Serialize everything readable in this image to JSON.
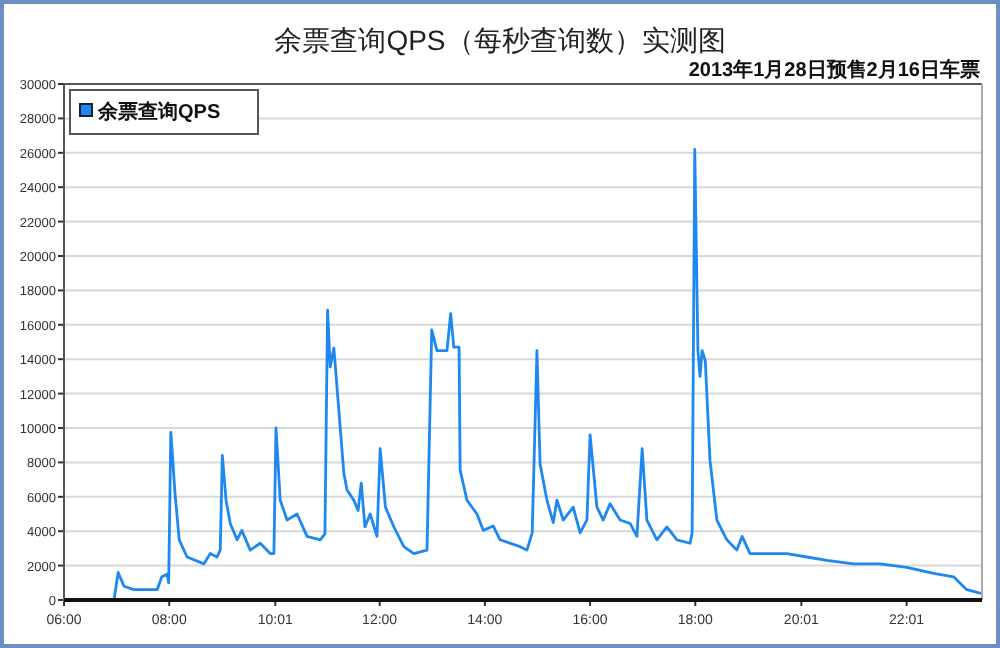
{
  "chart_data": {
    "type": "line",
    "title": "余票查询QPS（每秒查询数）实测图",
    "subtitle": "2013年1月28日预售2月16日车票",
    "x": [
      6.0,
      6.95,
      7.03,
      7.14,
      7.33,
      7.77,
      7.86,
      7.96,
      7.99,
      8.03,
      8.06,
      8.11,
      8.19,
      8.34,
      8.66,
      8.78,
      8.91,
      8.97,
      9.01,
      9.08,
      9.16,
      9.29,
      9.38,
      9.54,
      9.73,
      9.92,
      9.99,
      10.03,
      10.11,
      10.24,
      10.43,
      10.62,
      10.87,
      10.96,
      11.01,
      11.06,
      11.13,
      11.25,
      11.32,
      11.38,
      11.51,
      11.59,
      11.65,
      11.72,
      11.82,
      11.95,
      12.01,
      12.11,
      12.27,
      12.46,
      12.65,
      12.9,
      12.99,
      13.09,
      13.28,
      13.35,
      13.41,
      13.51,
      13.53,
      13.66,
      13.85,
      13.97,
      14.16,
      14.29,
      14.67,
      14.8,
      14.9,
      14.99,
      15.05,
      15.18,
      15.3,
      15.37,
      15.49,
      15.68,
      15.81,
      15.94,
      16.0,
      16.13,
      16.25,
      16.38,
      16.57,
      16.76,
      16.89,
      16.99,
      17.08,
      17.27,
      17.46,
      17.65,
      17.9,
      17.94,
      17.99,
      18.05,
      18.09,
      18.13,
      18.19,
      18.28,
      18.41,
      18.6,
      18.79,
      18.89,
      19.04,
      19.36,
      19.74,
      20.12,
      20.5,
      21.01,
      21.51,
      22.02,
      22.53,
      22.91,
      23.16,
      23.41
    ],
    "series": [
      {
        "name": "余票查询QPS",
        "color": "#1e88f0",
        "values": [
          0,
          0,
          1600,
          800,
          600,
          600,
          1350,
          1500,
          1000,
          9750,
          8500,
          6200,
          3500,
          2500,
          2100,
          2700,
          2500,
          2900,
          8400,
          5800,
          4450,
          3500,
          4050,
          2900,
          3300,
          2700,
          2700,
          10000,
          5800,
          4650,
          5000,
          3700,
          3500,
          3850,
          16850,
          13550,
          14650,
          10050,
          7350,
          6400,
          5800,
          5200,
          6800,
          4250,
          5000,
          3700,
          8800,
          5400,
          4250,
          3100,
          2700,
          2900,
          15700,
          14500,
          14500,
          16650,
          14700,
          14700,
          7550,
          5800,
          5000,
          4050,
          4300,
          3500,
          3100,
          2900,
          3900,
          14500,
          7900,
          5800,
          4500,
          5800,
          4650,
          5400,
          3900,
          4650,
          9600,
          5400,
          4650,
          5600,
          4650,
          4450,
          3700,
          8800,
          4650,
          3500,
          4250,
          3500,
          3300,
          3900,
          26200,
          14500,
          13000,
          14500,
          13900,
          8100,
          4650,
          3500,
          2900,
          3700,
          2700,
          2700,
          2700,
          2500,
          2300,
          2100,
          2100,
          1900,
          1550,
          1350,
          600,
          400
        ]
      }
    ],
    "xlim": [
      6,
      23.45
    ],
    "ylim": [
      0,
      30000
    ],
    "xticks": [
      {
        "value": 6,
        "label": "06:00"
      },
      {
        "value": 8,
        "label": "08:00"
      },
      {
        "value": 10.0167,
        "label": "10:01"
      },
      {
        "value": 12,
        "label": "12:00"
      },
      {
        "value": 14,
        "label": "14:00"
      },
      {
        "value": 16,
        "label": "16:00"
      },
      {
        "value": 18,
        "label": "18:00"
      },
      {
        "value": 20.0167,
        "label": "20:01"
      },
      {
        "value": 22.0167,
        "label": "22:01"
      }
    ],
    "yticks": [
      0,
      2000,
      4000,
      6000,
      8000,
      10000,
      12000,
      14000,
      16000,
      18000,
      20000,
      22000,
      24000,
      26000,
      28000,
      30000
    ],
    "grid": "y",
    "legend": "top left"
  }
}
